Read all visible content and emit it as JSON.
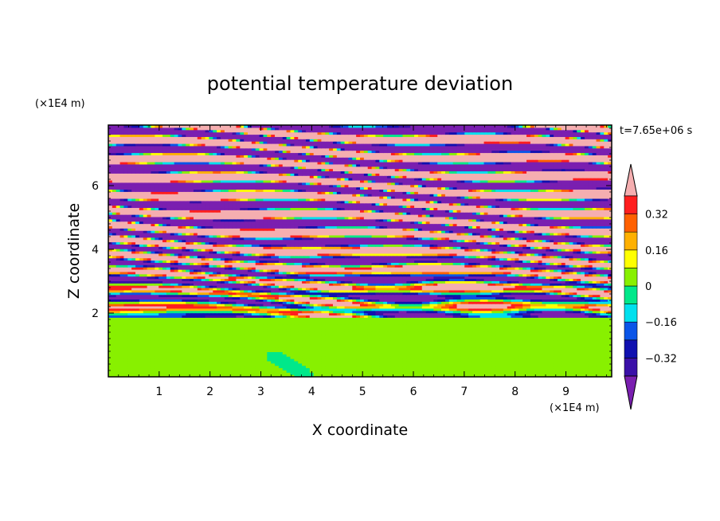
{
  "chart_data": {
    "type": "heatmap",
    "title": "potential temperature deviation",
    "xlabel": "X coordinate",
    "ylabel": "Z coordinate",
    "x_unit": "(×1E4 m)",
    "y_unit": "(×1E4 m)",
    "time_label": "t=7.65e+06 s",
    "xlim": [
      0,
      9.9
    ],
    "ylim": [
      0,
      7.9
    ],
    "x_ticks": [
      1,
      2,
      3,
      4,
      5,
      6,
      7,
      8,
      9
    ],
    "y_ticks": [
      2,
      4,
      6
    ],
    "colorbar": {
      "levels": [
        -0.4,
        -0.32,
        -0.24,
        -0.16,
        -0.08,
        0,
        0.08,
        0.16,
        0.24,
        0.32,
        0.4
      ],
      "colors": [
        "#7a1fb0",
        "#3a10a8",
        "#1010b0",
        "#0a55e8",
        "#00e0ee",
        "#00e88a",
        "#88f000",
        "#ffff00",
        "#ffb000",
        "#ff6000",
        "#ff1e1e",
        "#f5aeb0"
      ],
      "labels": [
        {
          "value": 0.32,
          "text": "0.32"
        },
        {
          "value": 0.16,
          "text": "0.16"
        },
        {
          "value": 0,
          "text": "0"
        },
        {
          "value": -0.16,
          "text": "−0.16"
        },
        {
          "value": -0.32,
          "text": "−0.32"
        }
      ]
    },
    "field_description": {
      "lower_region": "values between 0 and 0.08 (green), z < 1.9",
      "upper_region": "alternating layers above 0.4 (pink) and below -0.4 (purple), z > 4.5",
      "mixed_region": "turbulent mixture, z 1.9 to 4.5"
    }
  }
}
